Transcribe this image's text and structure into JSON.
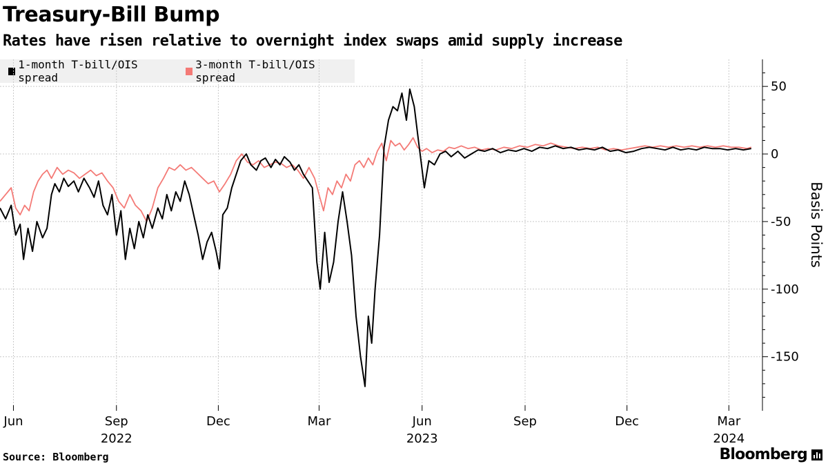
{
  "chart_data": {
    "type": "line",
    "title": "Treasury-Bill Bump",
    "subtitle": "Rates have risen relative to overnight index swaps amid supply increase",
    "ylabel": "Basis Points",
    "ylim": [
      -190,
      70
    ],
    "yticks": [
      50,
      0,
      -50,
      -100,
      -150
    ],
    "ytick_labels": [
      "50",
      "0",
      "-50",
      "-100",
      "-150"
    ],
    "x_start": "2022-05-20",
    "x_end": "2024-03-31",
    "xticks": [
      {
        "date": "2022-06-01",
        "label": "Jun",
        "year": ""
      },
      {
        "date": "2022-09-01",
        "label": "Sep",
        "year": "2022"
      },
      {
        "date": "2022-12-01",
        "label": "Dec",
        "year": ""
      },
      {
        "date": "2023-03-01",
        "label": "Mar",
        "year": ""
      },
      {
        "date": "2023-06-01",
        "label": "Jun",
        "year": "2023"
      },
      {
        "date": "2023-09-01",
        "label": "Sep",
        "year": ""
      },
      {
        "date": "2023-12-01",
        "label": "Dec",
        "year": ""
      },
      {
        "date": "2024-03-01",
        "label": "Mar",
        "year": "2024"
      }
    ],
    "legend_position": "top-left",
    "series": [
      {
        "name": "1-month T-bill/OIS spread",
        "color": "#000000",
        "points": [
          [
            "2022-05-20",
            -40
          ],
          [
            "2022-05-25",
            -48
          ],
          [
            "2022-05-30",
            -38
          ],
          [
            "2022-06-03",
            -60
          ],
          [
            "2022-06-07",
            -52
          ],
          [
            "2022-06-10",
            -78
          ],
          [
            "2022-06-14",
            -55
          ],
          [
            "2022-06-18",
            -72
          ],
          [
            "2022-06-22",
            -50
          ],
          [
            "2022-06-27",
            -62
          ],
          [
            "2022-07-01",
            -55
          ],
          [
            "2022-07-05",
            -30
          ],
          [
            "2022-07-08",
            -22
          ],
          [
            "2022-07-12",
            -28
          ],
          [
            "2022-07-16",
            -18
          ],
          [
            "2022-07-20",
            -24
          ],
          [
            "2022-07-25",
            -20
          ],
          [
            "2022-07-29",
            -28
          ],
          [
            "2022-08-03",
            -18
          ],
          [
            "2022-08-08",
            -25
          ],
          [
            "2022-08-12",
            -32
          ],
          [
            "2022-08-16",
            -20
          ],
          [
            "2022-08-20",
            -38
          ],
          [
            "2022-08-24",
            -45
          ],
          [
            "2022-08-28",
            -30
          ],
          [
            "2022-09-01",
            -60
          ],
          [
            "2022-09-05",
            -42
          ],
          [
            "2022-09-09",
            -78
          ],
          [
            "2022-09-13",
            -55
          ],
          [
            "2022-09-17",
            -70
          ],
          [
            "2022-09-21",
            -50
          ],
          [
            "2022-09-25",
            -62
          ],
          [
            "2022-09-29",
            -45
          ],
          [
            "2022-10-03",
            -55
          ],
          [
            "2022-10-08",
            -40
          ],
          [
            "2022-10-12",
            -48
          ],
          [
            "2022-10-16",
            -30
          ],
          [
            "2022-10-20",
            -42
          ],
          [
            "2022-10-24",
            -28
          ],
          [
            "2022-10-28",
            -35
          ],
          [
            "2022-11-01",
            -20
          ],
          [
            "2022-11-05",
            -30
          ],
          [
            "2022-11-09",
            -45
          ],
          [
            "2022-11-13",
            -60
          ],
          [
            "2022-11-17",
            -78
          ],
          [
            "2022-11-21",
            -65
          ],
          [
            "2022-11-25",
            -58
          ],
          [
            "2022-11-29",
            -72
          ],
          [
            "2022-12-02",
            -85
          ],
          [
            "2022-12-05",
            -45
          ],
          [
            "2022-12-09",
            -40
          ],
          [
            "2022-12-13",
            -25
          ],
          [
            "2022-12-17",
            -15
          ],
          [
            "2022-12-21",
            -5
          ],
          [
            "2022-12-26",
            0
          ],
          [
            "2022-12-30",
            -8
          ],
          [
            "2023-01-04",
            -12
          ],
          [
            "2023-01-08",
            -5
          ],
          [
            "2023-01-12",
            -3
          ],
          [
            "2023-01-17",
            -10
          ],
          [
            "2023-01-21",
            -4
          ],
          [
            "2023-01-25",
            -8
          ],
          [
            "2023-01-29",
            -2
          ],
          [
            "2023-02-03",
            -6
          ],
          [
            "2023-02-07",
            -12
          ],
          [
            "2023-02-11",
            -8
          ],
          [
            "2023-02-15",
            -15
          ],
          [
            "2023-02-19",
            -20
          ],
          [
            "2023-02-23",
            -25
          ],
          [
            "2023-02-27",
            -80
          ],
          [
            "2023-03-02",
            -100
          ],
          [
            "2023-03-06",
            -58
          ],
          [
            "2023-03-10",
            -95
          ],
          [
            "2023-03-14",
            -80
          ],
          [
            "2023-03-18",
            -50
          ],
          [
            "2023-03-22",
            -28
          ],
          [
            "2023-03-26",
            -50
          ],
          [
            "2023-03-30",
            -75
          ],
          [
            "2023-04-03",
            -120
          ],
          [
            "2023-04-07",
            -150
          ],
          [
            "2023-04-11",
            -172
          ],
          [
            "2023-04-14",
            -120
          ],
          [
            "2023-04-17",
            -140
          ],
          [
            "2023-04-20",
            -100
          ],
          [
            "2023-04-24",
            -60
          ],
          [
            "2023-04-28",
            5
          ],
          [
            "2023-05-02",
            25
          ],
          [
            "2023-05-06",
            35
          ],
          [
            "2023-05-10",
            32
          ],
          [
            "2023-05-14",
            45
          ],
          [
            "2023-05-18",
            25
          ],
          [
            "2023-05-21",
            48
          ],
          [
            "2023-05-25",
            35
          ],
          [
            "2023-05-28",
            15
          ],
          [
            "2023-05-31",
            -5
          ],
          [
            "2023-06-03",
            -25
          ],
          [
            "2023-06-07",
            -5
          ],
          [
            "2023-06-12",
            -8
          ],
          [
            "2023-06-17",
            0
          ],
          [
            "2023-06-22",
            2
          ],
          [
            "2023-06-27",
            -2
          ],
          [
            "2023-07-03",
            2
          ],
          [
            "2023-07-09",
            -3
          ],
          [
            "2023-07-15",
            0
          ],
          [
            "2023-07-21",
            3
          ],
          [
            "2023-07-27",
            2
          ],
          [
            "2023-08-03",
            4
          ],
          [
            "2023-08-10",
            1
          ],
          [
            "2023-08-17",
            3
          ],
          [
            "2023-08-24",
            2
          ],
          [
            "2023-08-31",
            4
          ],
          [
            "2023-09-07",
            2
          ],
          [
            "2023-09-14",
            5
          ],
          [
            "2023-09-21",
            4
          ],
          [
            "2023-09-28",
            6
          ],
          [
            "2023-10-05",
            4
          ],
          [
            "2023-10-12",
            5
          ],
          [
            "2023-10-19",
            3
          ],
          [
            "2023-10-26",
            4
          ],
          [
            "2023-11-02",
            3
          ],
          [
            "2023-11-09",
            5
          ],
          [
            "2023-11-16",
            2
          ],
          [
            "2023-11-23",
            3
          ],
          [
            "2023-11-30",
            1
          ],
          [
            "2023-12-07",
            2
          ],
          [
            "2023-12-14",
            4
          ],
          [
            "2023-12-21",
            5
          ],
          [
            "2023-12-28",
            4
          ],
          [
            "2024-01-04",
            3
          ],
          [
            "2024-01-11",
            5
          ],
          [
            "2024-01-18",
            3
          ],
          [
            "2024-01-25",
            4
          ],
          [
            "2024-02-01",
            3
          ],
          [
            "2024-02-08",
            5
          ],
          [
            "2024-02-15",
            4
          ],
          [
            "2024-02-22",
            4
          ],
          [
            "2024-02-29",
            3
          ],
          [
            "2024-03-07",
            4
          ],
          [
            "2024-03-14",
            3
          ],
          [
            "2024-03-21",
            4
          ]
        ]
      },
      {
        "name": "3-month T-bill/OIS spread",
        "color": "#f47a76",
        "points": [
          [
            "2022-05-20",
            -35
          ],
          [
            "2022-05-25",
            -30
          ],
          [
            "2022-05-30",
            -25
          ],
          [
            "2022-06-03",
            -40
          ],
          [
            "2022-06-07",
            -45
          ],
          [
            "2022-06-11",
            -38
          ],
          [
            "2022-06-15",
            -42
          ],
          [
            "2022-06-19",
            -28
          ],
          [
            "2022-06-23",
            -20
          ],
          [
            "2022-06-27",
            -15
          ],
          [
            "2022-07-01",
            -12
          ],
          [
            "2022-07-05",
            -18
          ],
          [
            "2022-07-10",
            -10
          ],
          [
            "2022-07-15",
            -15
          ],
          [
            "2022-07-20",
            -12
          ],
          [
            "2022-07-25",
            -14
          ],
          [
            "2022-07-30",
            -18
          ],
          [
            "2022-08-04",
            -15
          ],
          [
            "2022-08-09",
            -12
          ],
          [
            "2022-08-14",
            -16
          ],
          [
            "2022-08-19",
            -14
          ],
          [
            "2022-08-24",
            -20
          ],
          [
            "2022-08-29",
            -25
          ],
          [
            "2022-09-03",
            -35
          ],
          [
            "2022-09-08",
            -40
          ],
          [
            "2022-09-13",
            -30
          ],
          [
            "2022-09-18",
            -38
          ],
          [
            "2022-09-23",
            -42
          ],
          [
            "2022-09-28",
            -50
          ],
          [
            "2022-10-03",
            -40
          ],
          [
            "2022-10-08",
            -25
          ],
          [
            "2022-10-13",
            -18
          ],
          [
            "2022-10-18",
            -10
          ],
          [
            "2022-10-23",
            -12
          ],
          [
            "2022-10-28",
            -8
          ],
          [
            "2022-11-02",
            -12
          ],
          [
            "2022-11-07",
            -10
          ],
          [
            "2022-11-12",
            -14
          ],
          [
            "2022-11-17",
            -18
          ],
          [
            "2022-11-22",
            -22
          ],
          [
            "2022-11-27",
            -20
          ],
          [
            "2022-12-02",
            -28
          ],
          [
            "2022-12-07",
            -22
          ],
          [
            "2022-12-12",
            -15
          ],
          [
            "2022-12-17",
            -5
          ],
          [
            "2022-12-22",
            0
          ],
          [
            "2022-12-27",
            -6
          ],
          [
            "2023-01-01",
            -8
          ],
          [
            "2023-01-06",
            -5
          ],
          [
            "2023-01-11",
            -10
          ],
          [
            "2023-01-16",
            -8
          ],
          [
            "2023-01-21",
            -6
          ],
          [
            "2023-01-26",
            -7
          ],
          [
            "2023-01-31",
            -10
          ],
          [
            "2023-02-05",
            -8
          ],
          [
            "2023-02-10",
            -12
          ],
          [
            "2023-02-15",
            -18
          ],
          [
            "2023-02-20",
            -10
          ],
          [
            "2023-02-25",
            -18
          ],
          [
            "2023-03-01",
            -30
          ],
          [
            "2023-03-05",
            -42
          ],
          [
            "2023-03-09",
            -25
          ],
          [
            "2023-03-13",
            -30
          ],
          [
            "2023-03-17",
            -20
          ],
          [
            "2023-03-21",
            -25
          ],
          [
            "2023-03-25",
            -15
          ],
          [
            "2023-03-29",
            -20
          ],
          [
            "2023-04-02",
            -8
          ],
          [
            "2023-04-06",
            -5
          ],
          [
            "2023-04-10",
            -10
          ],
          [
            "2023-04-14",
            -3
          ],
          [
            "2023-04-18",
            -8
          ],
          [
            "2023-04-22",
            2
          ],
          [
            "2023-04-26",
            8
          ],
          [
            "2023-04-30",
            -5
          ],
          [
            "2023-05-04",
            10
          ],
          [
            "2023-05-08",
            6
          ],
          [
            "2023-05-12",
            8
          ],
          [
            "2023-05-16",
            3
          ],
          [
            "2023-05-20",
            7
          ],
          [
            "2023-05-24",
            12
          ],
          [
            "2023-05-28",
            5
          ],
          [
            "2023-06-01",
            2
          ],
          [
            "2023-06-05",
            4
          ],
          [
            "2023-06-10",
            1
          ],
          [
            "2023-06-15",
            3
          ],
          [
            "2023-06-20",
            2
          ],
          [
            "2023-06-25",
            5
          ],
          [
            "2023-06-30",
            4
          ],
          [
            "2023-07-06",
            6
          ],
          [
            "2023-07-12",
            4
          ],
          [
            "2023-07-18",
            5
          ],
          [
            "2023-07-24",
            3
          ],
          [
            "2023-07-30",
            4
          ],
          [
            "2023-08-06",
            3
          ],
          [
            "2023-08-13",
            5
          ],
          [
            "2023-08-20",
            4
          ],
          [
            "2023-08-27",
            6
          ],
          [
            "2023-09-03",
            5
          ],
          [
            "2023-09-10",
            7
          ],
          [
            "2023-09-17",
            6
          ],
          [
            "2023-09-24",
            8
          ],
          [
            "2023-10-01",
            6
          ],
          [
            "2023-10-08",
            5
          ],
          [
            "2023-10-15",
            4
          ],
          [
            "2023-10-22",
            5
          ],
          [
            "2023-10-29",
            4
          ],
          [
            "2023-11-05",
            5
          ],
          [
            "2023-11-12",
            3
          ],
          [
            "2023-11-19",
            4
          ],
          [
            "2023-11-26",
            3
          ],
          [
            "2023-12-03",
            4
          ],
          [
            "2023-12-10",
            5
          ],
          [
            "2023-12-17",
            6
          ],
          [
            "2023-12-24",
            5
          ],
          [
            "2023-12-31",
            6
          ],
          [
            "2024-01-07",
            5
          ],
          [
            "2024-01-14",
            6
          ],
          [
            "2024-01-21",
            5
          ],
          [
            "2024-01-28",
            6
          ],
          [
            "2024-02-04",
            5
          ],
          [
            "2024-02-11",
            6
          ],
          [
            "2024-02-18",
            5
          ],
          [
            "2024-02-25",
            6
          ],
          [
            "2024-03-03",
            5
          ],
          [
            "2024-03-10",
            5
          ],
          [
            "2024-03-17",
            4
          ],
          [
            "2024-03-21",
            5
          ]
        ]
      }
    ]
  },
  "source_text": "Source: Bloomberg",
  "brand": "Bloomberg"
}
